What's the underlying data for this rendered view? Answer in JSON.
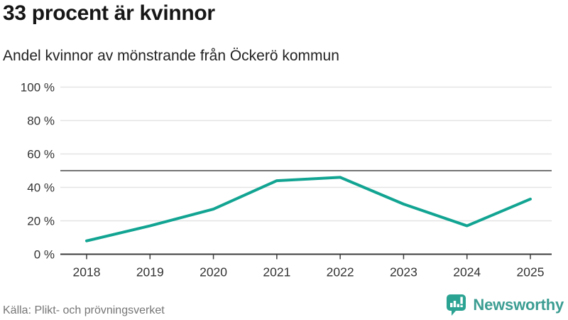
{
  "header": {
    "title": "33 procent är kvinnor",
    "subtitle": "Andel kvinnor av mönstrande från Öckerö kommun"
  },
  "chart_data": {
    "type": "line",
    "title": "33 procent är kvinnor",
    "subtitle": "Andel kvinnor av mönstrande från Öckerö kommun",
    "xlabel": "",
    "ylabel": "",
    "x": [
      2018,
      2019,
      2020,
      2021,
      2022,
      2023,
      2024,
      2025
    ],
    "series": [
      {
        "name": "Andel kvinnor av mönstrande",
        "values": [
          8,
          17,
          27,
          44,
          46,
          30,
          17,
          33
        ]
      }
    ],
    "ylim": [
      0,
      100
    ],
    "y_ticks": [
      0,
      20,
      40,
      60,
      80,
      100
    ],
    "y_tick_labels": [
      "0 %",
      "20 %",
      "40 %",
      "60 %",
      "80 %",
      "100 %"
    ],
    "reference_line": 50,
    "grid": true,
    "legend": "none"
  },
  "footer": {
    "source": "Källa: Plikt- och prövningsverket",
    "brand": "Newsworthy"
  },
  "colors": {
    "line": "#12a492",
    "grid": "#e4e4e4",
    "axis": "#3d3d3d",
    "reference": "#757575",
    "tick_label": "#333333",
    "logo_teal": "#2ba393",
    "logo_bars": "#ffffff",
    "wordmark_teal": "#3b9d92"
  }
}
